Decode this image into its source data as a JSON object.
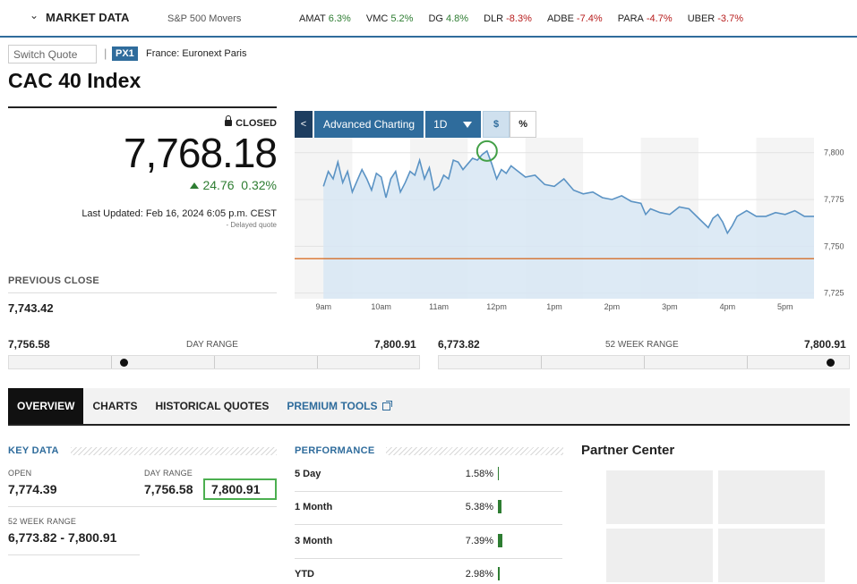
{
  "market_bar": {
    "title": "MARKET DATA",
    "movers_label": "S&P 500 Movers",
    "tickers": [
      {
        "symbol": "AMAT",
        "change": "6.3%",
        "direction": "up"
      },
      {
        "symbol": "VMC",
        "change": "5.2%",
        "direction": "up"
      },
      {
        "symbol": "DG",
        "change": "4.8%",
        "direction": "up"
      },
      {
        "symbol": "DLR",
        "change": "-8.3%",
        "direction": "down"
      },
      {
        "symbol": "ADBE",
        "change": "-7.4%",
        "direction": "down"
      },
      {
        "symbol": "PARA",
        "change": "-4.7%",
        "direction": "down"
      },
      {
        "symbol": "UBER",
        "change": "-3.7%",
        "direction": "down"
      }
    ]
  },
  "quote": {
    "switch_placeholder": "Switch Quote",
    "exchange_badge": "PX1",
    "exchange_name": "France: Euronext Paris",
    "title": "CAC 40 Index",
    "status": "CLOSED",
    "price": "7,768.18",
    "change": "24.76",
    "change_pct": "0.32%",
    "last_updated": "Last Updated: Feb 16, 2024 6:05 p.m. CEST",
    "delayed": "-  Delayed quote",
    "previous_close_label": "PREVIOUS CLOSE",
    "previous_close": "7,743.42"
  },
  "chart_toolbar": {
    "back_label": "<",
    "advanced_label": "Advanced Charting",
    "period_label": "1D",
    "currency_label": "$",
    "percent_label": "%"
  },
  "chart_data": {
    "type": "area",
    "x_tick_labels": [
      "9am",
      "10am",
      "11am",
      "12pm",
      "1pm",
      "2pm",
      "3pm",
      "4pm",
      "5pm"
    ],
    "y_tick_labels": [
      "7,800",
      "7,775",
      "7,750",
      "7,725"
    ],
    "ylim": [
      7722,
      7808
    ],
    "previous_close": 7743.42,
    "high_marker": {
      "x": "11:50",
      "y": 7800.91
    },
    "series": [
      {
        "x": [
          "9:00",
          "9:05",
          "9:10",
          "9:15",
          "9:20",
          "9:25",
          "9:30",
          "9:35",
          "9:40",
          "9:45",
          "9:50",
          "9:55",
          "10:00",
          "10:05",
          "10:10",
          "10:15",
          "10:20",
          "10:25",
          "10:30",
          "10:35",
          "10:40",
          "10:45",
          "10:50",
          "10:55",
          "11:00",
          "11:05",
          "11:10",
          "11:15",
          "11:20",
          "11:25",
          "11:30",
          "11:35",
          "11:40",
          "11:45",
          "11:50",
          "11:55",
          "12:00",
          "12:05",
          "12:10",
          "12:15",
          "12:20",
          "12:30",
          "12:40",
          "12:50",
          "13:00",
          "13:10",
          "13:20",
          "13:30",
          "13:40",
          "13:50",
          "14:00",
          "14:10",
          "14:20",
          "14:30",
          "14:35",
          "14:40",
          "14:50",
          "15:00",
          "15:10",
          "15:20",
          "15:30",
          "15:40",
          "15:45",
          "15:50",
          "15:55",
          "16:00",
          "16:05",
          "16:10",
          "16:20",
          "16:30",
          "16:40",
          "16:50",
          "17:00",
          "17:10",
          "17:20",
          "17:30"
        ],
        "values": [
          7782,
          7790,
          7786,
          7795,
          7784,
          7790,
          7779,
          7785,
          7791,
          7786,
          7780,
          7789,
          7787,
          7776,
          7786,
          7790,
          7779,
          7784,
          7790,
          7788,
          7796,
          7786,
          7792,
          7780,
          7782,
          7788,
          7786,
          7796,
          7795,
          7791,
          7794,
          7797,
          7796,
          7799,
          7800.91,
          7794,
          7786,
          7791,
          7789,
          7793,
          7791,
          7787,
          7788,
          7783,
          7782,
          7786,
          7780,
          7778,
          7779,
          7776,
          7775,
          7777,
          7774,
          7773,
          7767,
          7770,
          7768,
          7767,
          7771,
          7770,
          7765,
          7760,
          7765,
          7767,
          7763,
          7757,
          7761,
          7766,
          7769,
          7766,
          7766,
          7768,
          7767,
          7769,
          7766,
          7766
        ]
      }
    ]
  },
  "day_range": {
    "label": "DAY RANGE",
    "low": "7,756.58",
    "high": "7,800.91",
    "position": 0.28
  },
  "week52_range": {
    "label": "52 WEEK RANGE",
    "low": "6,773.82",
    "high": "7,800.91",
    "position": 0.955
  },
  "tabs": [
    "OVERVIEW",
    "CHARTS",
    "HISTORICAL QUOTES",
    "PREMIUM TOOLS"
  ],
  "key_data": {
    "heading": "KEY DATA",
    "open_label": "OPEN",
    "open": "7,774.39",
    "day_range_label": "DAY RANGE",
    "day_range_low": "7,756.58",
    "day_range_high": "7,800.91",
    "week52_label": "52 WEEK RANGE",
    "week52": "6,773.82 - 7,800.91"
  },
  "performance": {
    "heading": "PERFORMANCE",
    "rows": [
      {
        "label": "5 Day",
        "value": "1.58%",
        "bar_fraction": 0.02
      },
      {
        "label": "1 Month",
        "value": "5.38%",
        "bar_fraction": 0.07
      },
      {
        "label": "3 Month",
        "value": "7.39%",
        "bar_fraction": 0.09
      },
      {
        "label": "YTD",
        "value": "2.98%",
        "bar_fraction": 0.03
      }
    ]
  },
  "partner_center": {
    "title": "Partner Center"
  },
  "colors": {
    "accent": "#2f6c9c",
    "positive": "#2e7d32",
    "negative": "#b71c1c",
    "previous_close_line": "#d35400",
    "chart_line": "#5b93c4",
    "chart_fill": "#d7e6f3"
  }
}
